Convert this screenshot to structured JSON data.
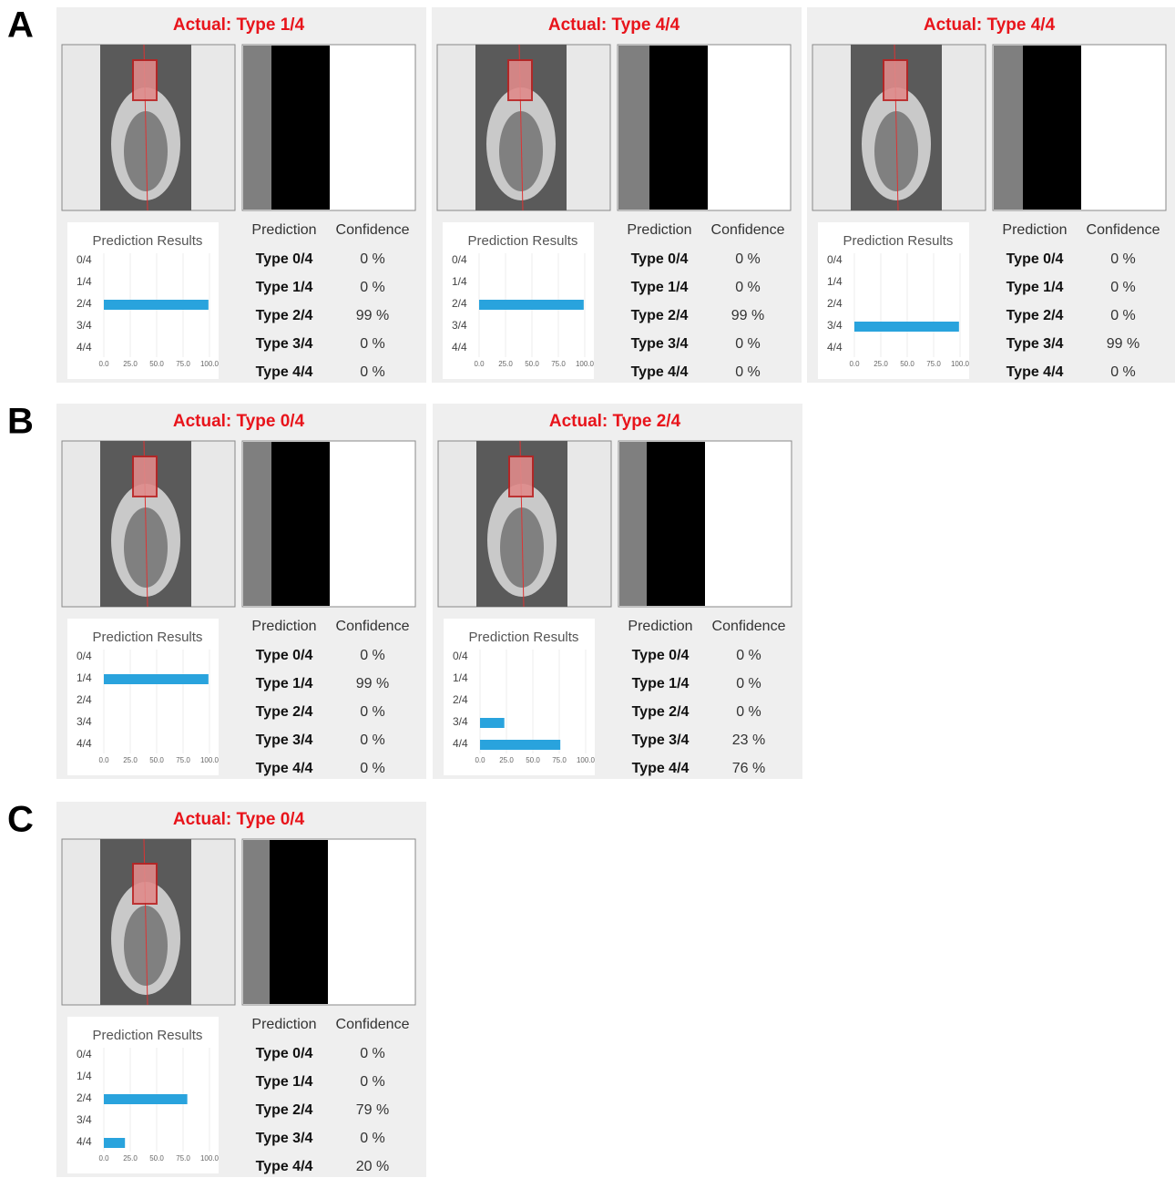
{
  "panels": [
    {
      "label": "A",
      "cases": [
        {
          "title": "Actual: Type 1/4",
          "chart": {
            "type": "bar",
            "title": "Prediction Results",
            "categories": [
              "0/4",
              "1/4",
              "2/4",
              "3/4",
              "4/4"
            ],
            "values": [
              0,
              0,
              99,
              0,
              0
            ],
            "color": "#29a3dd",
            "xlim": [
              0,
              100
            ],
            "xticks": [
              {
                "value": 0,
                "label": "0.0"
              },
              {
                "value": 25,
                "label": "25.0"
              },
              {
                "value": 50,
                "label": "50.0"
              },
              {
                "value": 75,
                "label": "75.0"
              },
              {
                "value": 100,
                "label": "100.0"
              }
            ],
            "grid": true
          },
          "table": {
            "header": [
              "Prediction",
              "Confidence"
            ],
            "rows": [
              [
                "Type 0/4",
                "0 %"
              ],
              [
                "Type 1/4",
                "0 %"
              ],
              [
                "Type 2/4",
                "99 %"
              ],
              [
                "Type 3/4",
                "0 %"
              ],
              [
                "Type 4/4",
                "0 %"
              ]
            ]
          }
        },
        {
          "title": "Actual: Type 4/4",
          "chart": {
            "type": "bar",
            "title": "Prediction Results",
            "categories": [
              "0/4",
              "1/4",
              "2/4",
              "3/4",
              "4/4"
            ],
            "values": [
              0,
              0,
              99,
              0,
              0
            ],
            "color": "#29a3dd",
            "xlim": [
              0,
              100
            ],
            "xticks": [
              {
                "value": 0,
                "label": "0.0"
              },
              {
                "value": 25,
                "label": "25.0"
              },
              {
                "value": 50,
                "label": "50.0"
              },
              {
                "value": 75,
                "label": "75.0"
              },
              {
                "value": 100,
                "label": "100.0"
              }
            ],
            "grid": true
          },
          "table": {
            "header": [
              "Prediction",
              "Confidence"
            ],
            "rows": [
              [
                "Type 0/4",
                "0 %"
              ],
              [
                "Type 1/4",
                "0 %"
              ],
              [
                "Type 2/4",
                "99 %"
              ],
              [
                "Type 3/4",
                "0 %"
              ],
              [
                "Type 4/4",
                "0 %"
              ]
            ]
          }
        },
        {
          "title": "Actual: Type 4/4",
          "chart": {
            "type": "bar",
            "title": "Prediction Results",
            "categories": [
              "0/4",
              "1/4",
              "2/4",
              "3/4",
              "4/4"
            ],
            "values": [
              0,
              0,
              0,
              99,
              0
            ],
            "color": "#29a3dd",
            "xlim": [
              0,
              100
            ],
            "xticks": [
              {
                "value": 0,
                "label": "0.0"
              },
              {
                "value": 25,
                "label": "25.0"
              },
              {
                "value": 50,
                "label": "50.0"
              },
              {
                "value": 75,
                "label": "75.0"
              },
              {
                "value": 100,
                "label": "100.0"
              }
            ],
            "grid": true
          },
          "table": {
            "header": [
              "Prediction",
              "Confidence"
            ],
            "rows": [
              [
                "Type 0/4",
                "0 %"
              ],
              [
                "Type 1/4",
                "0 %"
              ],
              [
                "Type 2/4",
                "0 %"
              ],
              [
                "Type 3/4",
                "99 %"
              ],
              [
                "Type 4/4",
                "0 %"
              ]
            ]
          }
        }
      ]
    },
    {
      "label": "B",
      "cases": [
        {
          "title": "Actual: Type 0/4",
          "chart": {
            "type": "bar",
            "title": "Prediction Results",
            "categories": [
              "0/4",
              "1/4",
              "2/4",
              "3/4",
              "4/4"
            ],
            "values": [
              0,
              99,
              0,
              0,
              0
            ],
            "color": "#29a3dd",
            "xlim": [
              0,
              100
            ],
            "xticks": [
              {
                "value": 0,
                "label": "0.0"
              },
              {
                "value": 25,
                "label": "25.0"
              },
              {
                "value": 50,
                "label": "50.0"
              },
              {
                "value": 75,
                "label": "75.0"
              },
              {
                "value": 100,
                "label": "100.0"
              }
            ],
            "grid": true
          },
          "table": {
            "header": [
              "Prediction",
              "Confidence"
            ],
            "rows": [
              [
                "Type 0/4",
                "0 %"
              ],
              [
                "Type 1/4",
                "99 %"
              ],
              [
                "Type 2/4",
                "0 %"
              ],
              [
                "Type 3/4",
                "0 %"
              ],
              [
                "Type 4/4",
                "0 %"
              ]
            ]
          }
        },
        {
          "title": "Actual: Type 2/4",
          "chart": {
            "type": "bar",
            "title": "Prediction Results",
            "categories": [
              "0/4",
              "1/4",
              "2/4",
              "3/4",
              "4/4"
            ],
            "values": [
              0,
              0,
              0,
              23,
              76
            ],
            "color": "#29a3dd",
            "xlim": [
              0,
              100
            ],
            "xticks": [
              {
                "value": 0,
                "label": "0.0"
              },
              {
                "value": 25,
                "label": "25.0"
              },
              {
                "value": 50,
                "label": "50.0"
              },
              {
                "value": 75,
                "label": "75.0"
              },
              {
                "value": 100,
                "label": "100.0"
              }
            ],
            "grid": true
          },
          "table": {
            "header": [
              "Prediction",
              "Confidence"
            ],
            "rows": [
              [
                "Type 0/4",
                "0 %"
              ],
              [
                "Type 1/4",
                "0 %"
              ],
              [
                "Type 2/4",
                "0 %"
              ],
              [
                "Type 3/4",
                "23 %"
              ],
              [
                "Type 4/4",
                "76 %"
              ]
            ]
          }
        }
      ]
    },
    {
      "label": "C",
      "cases": [
        {
          "title": "Actual: Type 0/4",
          "chart": {
            "type": "bar",
            "title": "Prediction Results",
            "categories": [
              "0/4",
              "1/4",
              "2/4",
              "3/4",
              "4/4"
            ],
            "values": [
              0,
              0,
              79,
              0,
              20
            ],
            "color": "#29a3dd",
            "xlim": [
              0,
              100
            ],
            "xticks": [
              {
                "value": 0,
                "label": "0.0"
              },
              {
                "value": 25,
                "label": "25.0"
              },
              {
                "value": 50,
                "label": "50.0"
              },
              {
                "value": 75,
                "label": "75.0"
              },
              {
                "value": 100,
                "label": "100.0"
              }
            ],
            "grid": true
          },
          "table": {
            "header": [
              "Prediction",
              "Confidence"
            ],
            "rows": [
              [
                "Type 0/4",
                "0 %"
              ],
              [
                "Type 1/4",
                "0 %"
              ],
              [
                "Type 2/4",
                "79 %"
              ],
              [
                "Type 3/4",
                "0 %"
              ],
              [
                "Type 4/4",
                "20 %"
              ]
            ]
          }
        }
      ]
    }
  ]
}
